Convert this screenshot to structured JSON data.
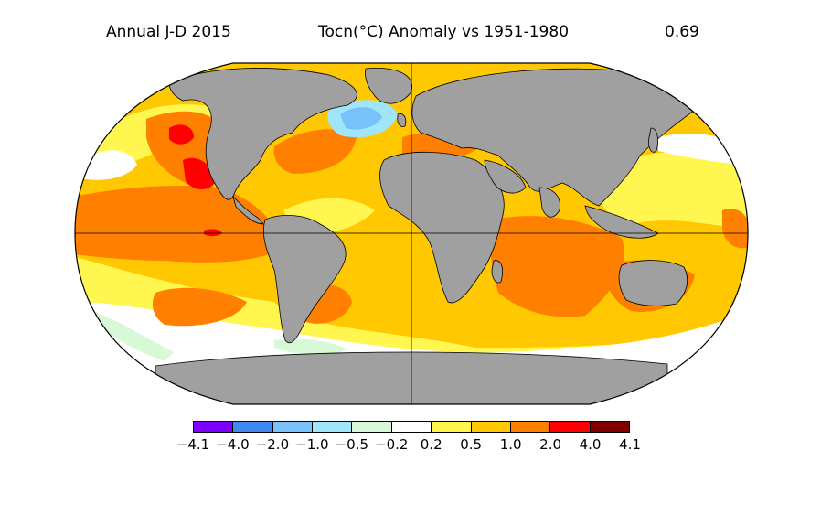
{
  "header": {
    "left": "Annual J-D 2015",
    "center": "Tocn(°C) Anomaly vs 1951-1980",
    "right": "0.69"
  },
  "legend": {
    "colors": [
      "#7f00ff",
      "#4189f2",
      "#77c2f8",
      "#a0e6fa",
      "#d8f8d8",
      "#ffffff",
      "#fff64f",
      "#ffc800",
      "#ff7f00",
      "#ff0000",
      "#800000"
    ],
    "ticks": [
      "−4.1",
      "−4.0",
      "−2.0",
      "−1.0",
      "−0.5",
      "−0.2",
      "0.2",
      "0.5",
      "1.0",
      "2.0",
      "4.0",
      "4.1"
    ]
  },
  "colors": {
    "land": "#a0a0a0",
    "ocean_base": "#ffc800",
    "outline": "#000000"
  }
}
